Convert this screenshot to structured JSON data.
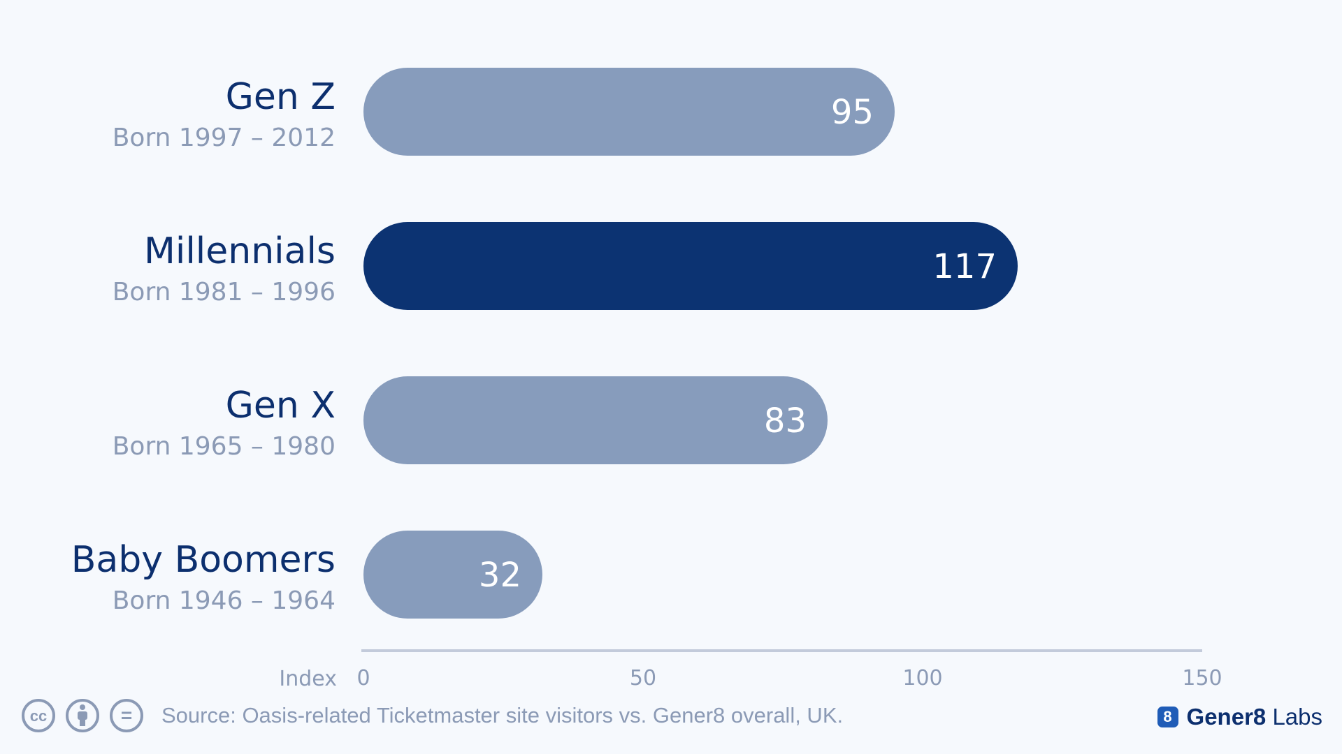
{
  "chart_data": {
    "type": "bar",
    "orientation": "horizontal",
    "categories": [
      "Gen Z",
      "Millennials",
      "Gen X",
      "Baby Boomers"
    ],
    "subtitles": [
      "Born 1997 – 2012",
      "Born 1981 – 1996",
      "Born 1965 – 1980",
      "Born 1946 – 1964"
    ],
    "values": [
      95,
      117,
      83,
      32
    ],
    "highlight_index": 1,
    "xlabel": "Index",
    "xlim": [
      0,
      150
    ],
    "xticks": [
      0,
      50,
      100,
      150
    ],
    "grid": false,
    "colors": {
      "bar": "#879cbc",
      "highlight": "#0c3372",
      "axis": "#c3cbdb"
    }
  },
  "footer": {
    "source": "Source: Oasis-related Ticketmaster site visitors vs. Gener8 overall, UK.",
    "license_icons": [
      "cc-icon",
      "attribution-icon",
      "no-derivatives-icon"
    ],
    "cc_glyph": "cc",
    "nd_glyph": "="
  },
  "brand": {
    "badge": "8",
    "name_bold": "Gener8",
    "name_light": "Labs"
  }
}
